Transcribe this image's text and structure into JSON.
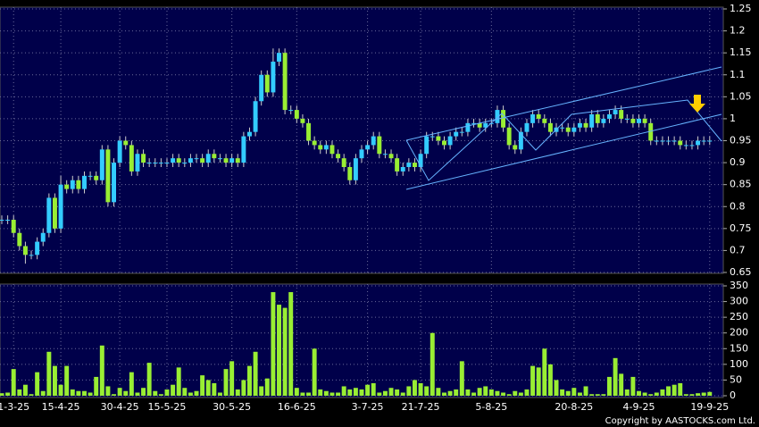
{
  "chart_data": {
    "type": "candlestick",
    "grid": true,
    "up_color": "#33ccff",
    "down_color": "#99ee33",
    "volume_color": "#99ee33",
    "copyright": "Copyright by AASTOCKS.com Ltd.",
    "ylim": [
      0.65,
      1.25
    ],
    "yticks": [
      0.65,
      0.7,
      0.75,
      0.8,
      0.85,
      0.9,
      0.95,
      1,
      1.05,
      1.1,
      1.15,
      1.2,
      1.25
    ],
    "y2lim": [
      0,
      350
    ],
    "y2ticks": [
      0,
      50,
      100,
      150,
      200,
      250,
      300,
      350
    ],
    "xlim": [
      0,
      122
    ],
    "xticks": [
      {
        "value": 2,
        "label": "1-3-25"
      },
      {
        "value": 10,
        "label": "15-4-25"
      },
      {
        "value": 20,
        "label": "30-4-25"
      },
      {
        "value": 28,
        "label": "15-5-25"
      },
      {
        "value": 39,
        "label": "30-5-25"
      },
      {
        "value": 50,
        "label": "16-6-25"
      },
      {
        "value": 62,
        "label": "3-7-25"
      },
      {
        "value": 71,
        "label": "21-7-25"
      },
      {
        "value": 83,
        "label": "5-8-25"
      },
      {
        "value": 97,
        "label": "20-8-25"
      },
      {
        "value": 108,
        "label": "4-9-25"
      },
      {
        "value": 120,
        "label": "19-9-25"
      }
    ],
    "open": [
      0.77,
      0.77,
      0.77,
      0.74,
      0.71,
      0.69,
      0.69,
      0.72,
      0.74,
      0.82,
      0.75,
      0.85,
      0.84,
      0.86,
      0.84,
      0.87,
      0.87,
      0.86,
      0.93,
      0.81,
      0.9,
      0.95,
      0.94,
      0.88,
      0.92,
      0.9,
      0.9,
      0.9,
      0.9,
      0.9,
      0.91,
      0.9,
      0.9,
      0.91,
      0.91,
      0.9,
      0.92,
      0.91,
      0.91,
      0.9,
      0.91,
      0.9,
      0.96,
      0.97,
      1.04,
      1.1,
      1.06,
      1.13,
      1.15,
      1.02,
      1.02,
      1.0,
      0.99,
      0.95,
      0.94,
      0.93,
      0.94,
      0.92,
      0.91,
      0.89,
      0.86,
      0.91,
      0.93,
      0.94,
      0.96,
      0.92,
      0.92,
      0.91,
      0.88,
      0.89,
      0.9,
      0.89,
      0.92,
      0.96,
      0.96,
      0.95,
      0.94,
      0.96,
      0.97,
      0.97,
      0.99,
      0.99,
      0.98,
      0.99,
      0.99,
      1.02,
      0.98,
      0.94,
      0.93,
      0.97,
      0.99,
      1.01,
      1.0,
      0.99,
      0.97,
      0.98,
      0.98,
      0.97,
      0.98,
      0.99,
      0.98,
      1.01,
      0.99,
      1.0,
      1.01,
      1.02,
      1.0,
      1.0,
      0.99,
      1.0,
      0.99,
      0.95,
      0.95,
      0.95,
      0.95,
      0.95,
      0.94,
      0.94,
      0.94,
      0.95,
      0.95
    ],
    "high": [
      0.78,
      0.78,
      0.78,
      0.75,
      0.72,
      0.7,
      0.73,
      0.75,
      0.83,
      0.83,
      0.87,
      0.86,
      0.87,
      0.87,
      0.88,
      0.88,
      0.88,
      0.94,
      0.94,
      0.91,
      0.96,
      0.96,
      0.95,
      0.93,
      0.93,
      0.91,
      0.91,
      0.91,
      0.91,
      0.92,
      0.92,
      0.91,
      0.92,
      0.92,
      0.92,
      0.93,
      0.93,
      0.92,
      0.92,
      0.92,
      0.92,
      0.97,
      0.98,
      1.05,
      1.11,
      1.11,
      1.16,
      1.16,
      1.16,
      1.03,
      1.03,
      1.01,
      1.0,
      0.96,
      0.95,
      0.95,
      0.95,
      0.93,
      0.92,
      0.9,
      0.92,
      0.94,
      0.95,
      0.97,
      0.97,
      0.93,
      0.93,
      0.92,
      0.9,
      0.91,
      0.91,
      0.93,
      0.97,
      0.97,
      0.97,
      0.96,
      0.97,
      0.98,
      0.98,
      1.0,
      1.0,
      1.0,
      1.0,
      1.0,
      1.03,
      1.03,
      0.99,
      0.95,
      0.98,
      1.0,
      1.02,
      1.02,
      1.01,
      1.0,
      0.99,
      0.99,
      0.99,
      0.99,
      1.0,
      1.0,
      1.02,
      1.02,
      1.01,
      1.02,
      1.03,
      1.03,
      1.01,
      1.01,
      1.01,
      1.01,
      1.0,
      0.96,
      0.96,
      0.96,
      0.96,
      0.96,
      0.95,
      0.95,
      0.96,
      0.96,
      0.96
    ],
    "low": [
      0.76,
      0.76,
      0.73,
      0.7,
      0.67,
      0.68,
      0.68,
      0.71,
      0.73,
      0.74,
      0.74,
      0.83,
      0.83,
      0.83,
      0.83,
      0.86,
      0.85,
      0.85,
      0.8,
      0.8,
      0.89,
      0.93,
      0.87,
      0.87,
      0.89,
      0.89,
      0.89,
      0.89,
      0.89,
      0.89,
      0.89,
      0.89,
      0.89,
      0.9,
      0.89,
      0.89,
      0.9,
      0.9,
      0.89,
      0.89,
      0.89,
      0.89,
      0.95,
      0.96,
      1.03,
      1.05,
      1.05,
      1.12,
      1.01,
      1.01,
      0.99,
      0.98,
      0.94,
      0.93,
      0.92,
      0.92,
      0.91,
      0.9,
      0.88,
      0.85,
      0.85,
      0.9,
      0.92,
      0.93,
      0.91,
      0.91,
      0.9,
      0.87,
      0.87,
      0.88,
      0.88,
      0.88,
      0.91,
      0.95,
      0.94,
      0.93,
      0.93,
      0.95,
      0.96,
      0.96,
      0.98,
      0.97,
      0.97,
      0.98,
      0.98,
      0.97,
      0.93,
      0.92,
      0.92,
      0.96,
      0.98,
      0.99,
      0.98,
      0.96,
      0.96,
      0.97,
      0.96,
      0.96,
      0.97,
      0.97,
      0.97,
      0.98,
      0.98,
      0.99,
      1.0,
      0.99,
      0.99,
      0.98,
      0.98,
      0.98,
      0.94,
      0.94,
      0.94,
      0.94,
      0.94,
      0.93,
      0.93,
      0.93,
      0.93,
      0.94,
      0.94
    ],
    "close": [
      0.77,
      0.77,
      0.74,
      0.71,
      0.69,
      0.69,
      0.72,
      0.74,
      0.82,
      0.75,
      0.85,
      0.84,
      0.86,
      0.84,
      0.87,
      0.87,
      0.86,
      0.93,
      0.81,
      0.9,
      0.95,
      0.94,
      0.88,
      0.92,
      0.9,
      0.9,
      0.9,
      0.9,
      0.9,
      0.91,
      0.9,
      0.9,
      0.91,
      0.91,
      0.9,
      0.92,
      0.91,
      0.91,
      0.9,
      0.91,
      0.9,
      0.96,
      0.97,
      1.04,
      1.1,
      1.06,
      1.13,
      1.15,
      1.02,
      1.02,
      1.0,
      0.99,
      0.95,
      0.94,
      0.93,
      0.94,
      0.92,
      0.91,
      0.89,
      0.86,
      0.91,
      0.93,
      0.94,
      0.96,
      0.92,
      0.92,
      0.91,
      0.88,
      0.89,
      0.9,
      0.89,
      0.92,
      0.96,
      0.96,
      0.95,
      0.94,
      0.96,
      0.97,
      0.97,
      0.99,
      0.99,
      0.98,
      0.99,
      0.99,
      1.02,
      0.98,
      0.94,
      0.93,
      0.97,
      0.99,
      1.01,
      1.0,
      0.99,
      0.97,
      0.98,
      0.98,
      0.97,
      0.98,
      0.99,
      0.98,
      1.01,
      0.99,
      1.0,
      1.01,
      1.02,
      1.0,
      1.0,
      0.99,
      1.0,
      0.99,
      0.95,
      0.95,
      0.95,
      0.95,
      0.95,
      0.94,
      0.94,
      0.94,
      0.95,
      0.95,
      0.95
    ],
    "volume": [
      8,
      10,
      85,
      20,
      35,
      5,
      75,
      15,
      140,
      95,
      35,
      95,
      20,
      15,
      15,
      10,
      60,
      160,
      30,
      5,
      25,
      15,
      75,
      10,
      25,
      105,
      15,
      5,
      20,
      35,
      90,
      25,
      10,
      15,
      65,
      50,
      40,
      10,
      85,
      110,
      20,
      50,
      95,
      140,
      30,
      55,
      330,
      290,
      280,
      330,
      25,
      10,
      10,
      150,
      20,
      15,
      10,
      10,
      30,
      20,
      25,
      20,
      35,
      40,
      10,
      15,
      25,
      20,
      10,
      30,
      50,
      40,
      30,
      200,
      25,
      10,
      15,
      20,
      110,
      20,
      10,
      25,
      30,
      20,
      15,
      10,
      5,
      15,
      10,
      20,
      95,
      90,
      150,
      100,
      50,
      20,
      15,
      25,
      10,
      30,
      5,
      5,
      5,
      60,
      120,
      70,
      20,
      60,
      15,
      10,
      5,
      10,
      20,
      30,
      35,
      40,
      5,
      5,
      8,
      10,
      12
    ]
  }
}
